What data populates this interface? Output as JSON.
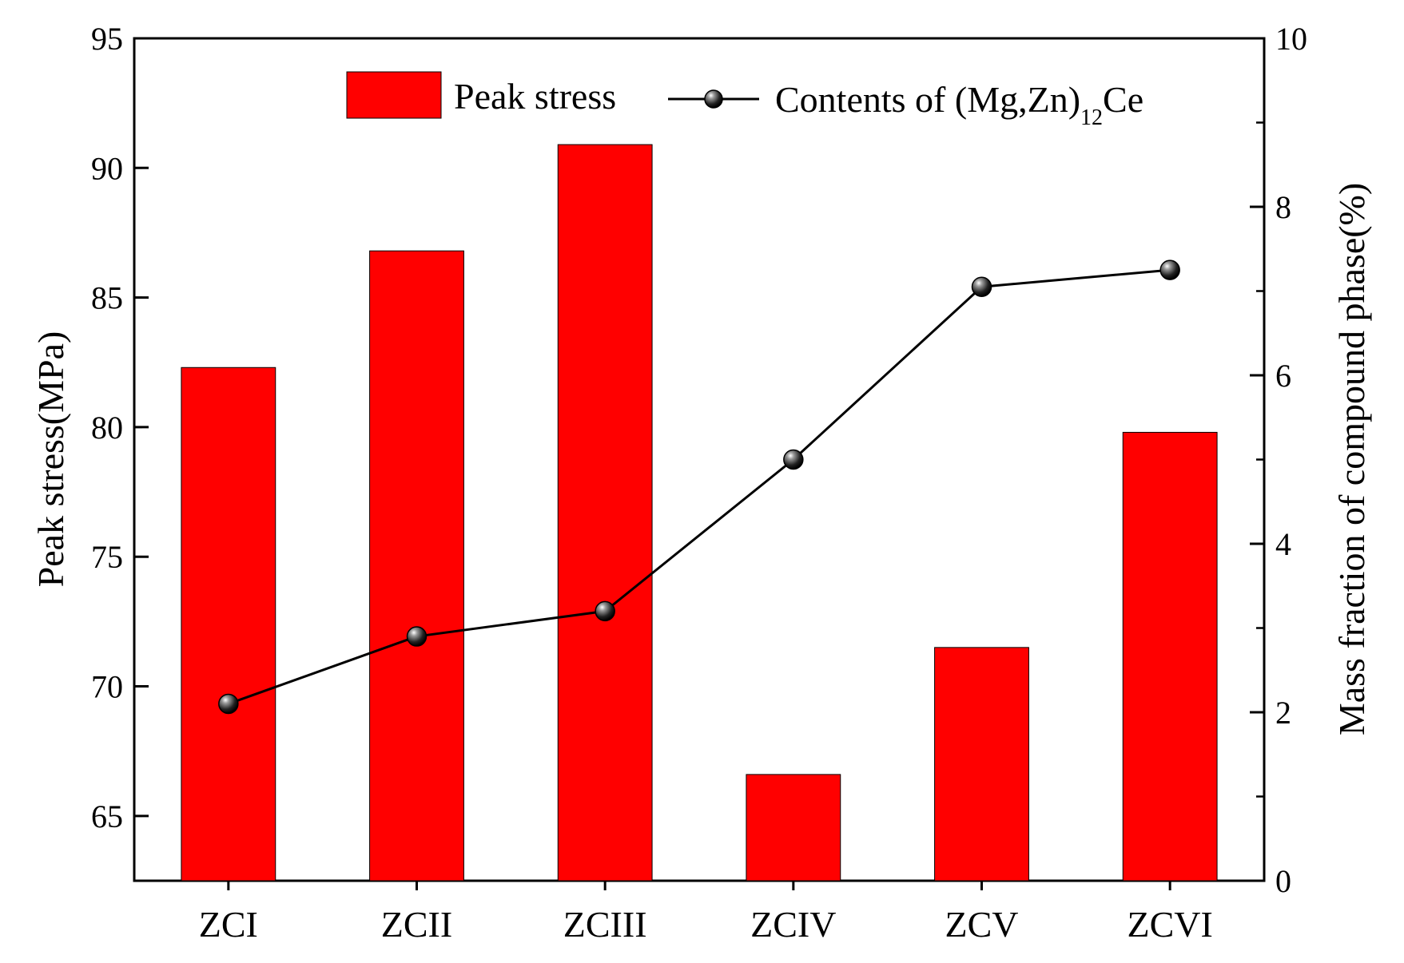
{
  "chart_data": {
    "type": "bar+line",
    "categories": [
      "ZCI",
      "ZCII",
      "ZCIII",
      "ZCIV",
      "ZCV",
      "ZCVI"
    ],
    "series": [
      {
        "name": "Peak stress",
        "type": "bar",
        "axis": "left",
        "color": "#ff0000",
        "values": [
          82.3,
          86.8,
          90.9,
          66.6,
          71.5,
          79.8
        ]
      },
      {
        "name": "Contents of (Mg,Zn)12Ce",
        "legend_main": "Contents of (Mg,Zn)",
        "legend_sub": "12",
        "legend_tail": "Ce",
        "type": "line",
        "axis": "right",
        "color": "#000000",
        "values": [
          2.1,
          2.9,
          3.2,
          5.0,
          7.05,
          7.25
        ]
      }
    ],
    "left_axis": {
      "label": "Peak stress(MPa)",
      "ylim": [
        62.5,
        95
      ],
      "ticks": [
        "65",
        "70",
        "75",
        "80",
        "85",
        "90",
        "95"
      ]
    },
    "right_axis": {
      "label": "Mass fraction of compound phase(%)",
      "ylim": [
        0,
        10
      ],
      "ticks": [
        "0",
        "2",
        "4",
        "6",
        "8",
        "10"
      ]
    },
    "legend": {
      "placement": "top-right"
    },
    "grid": false
  }
}
